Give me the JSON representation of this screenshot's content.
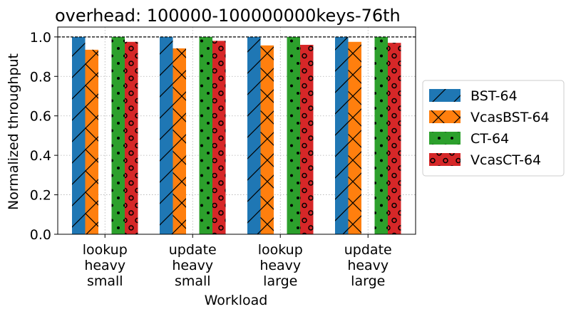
{
  "chart_data": {
    "type": "bar",
    "title": "overhead: 100000-100000000keys-76th",
    "xlabel": "Workload",
    "ylabel": "Normalized throughput",
    "categories": [
      [
        "lookup",
        "heavy",
        "small"
      ],
      [
        "update",
        "heavy",
        "small"
      ],
      [
        "lookup",
        "heavy",
        "large"
      ],
      [
        "update",
        "heavy",
        "large"
      ]
    ],
    "ylim": [
      0,
      1.05
    ],
    "yticks": [
      "0.0",
      "0.2",
      "0.4",
      "0.6",
      "0.8",
      "1.0"
    ],
    "reference_line": 1.0,
    "grid": true,
    "legend_position": "right",
    "series": [
      {
        "name": "BST-64",
        "color": "#1f77b4",
        "hatch": "diagonal",
        "values": [
          1.0,
          1.0,
          1.0,
          1.0
        ]
      },
      {
        "name": "VcasBST-64",
        "color": "#ff7f0e",
        "hatch": "cross",
        "values": [
          0.935,
          0.942,
          0.957,
          0.975
        ]
      },
      {
        "name": "CT-64",
        "color": "#2ca02c",
        "hatch": "dots",
        "values": [
          1.0,
          1.0,
          1.0,
          1.0
        ]
      },
      {
        "name": "VcasCT-64",
        "color": "#d62728",
        "hatch": "circles",
        "values": [
          0.975,
          0.98,
          0.96,
          0.97
        ]
      }
    ]
  }
}
